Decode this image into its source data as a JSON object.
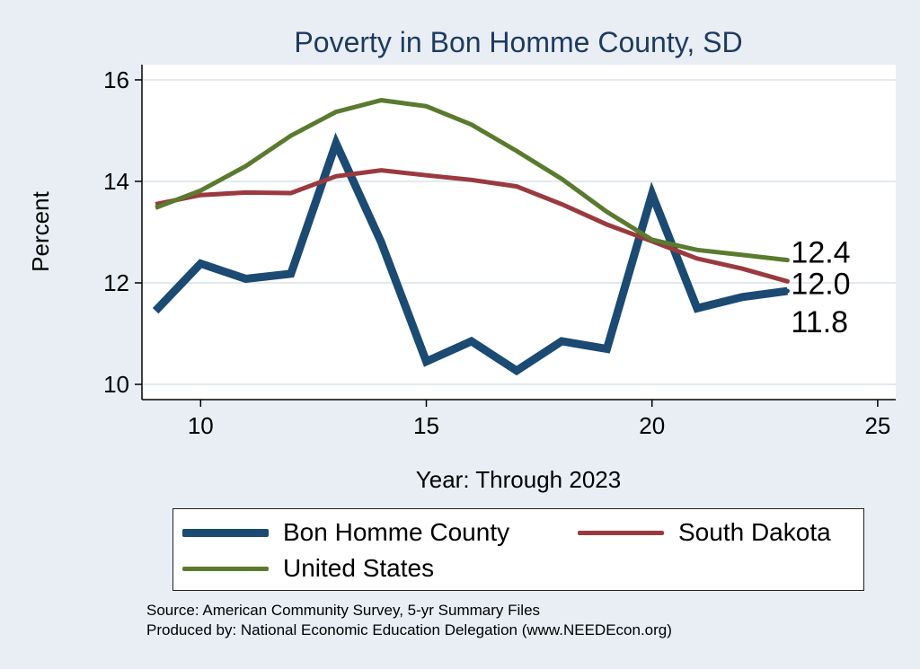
{
  "chart_data": {
    "type": "line",
    "title": "Poverty in Bon Homme County, SD",
    "xlabel": "Year: Through 2023",
    "ylabel": "Percent",
    "xlim": [
      8.7,
      25.4
    ],
    "ylim": [
      9.7,
      16.3
    ],
    "xticks": [
      10,
      15,
      20,
      25
    ],
    "yticks": [
      10,
      12,
      14,
      16
    ],
    "grid": true,
    "legend_position": "bottom",
    "series": [
      {
        "name": "Bon Homme County",
        "color": "#1b4a73",
        "width": 9,
        "x": [
          9,
          10,
          11,
          12,
          13,
          14,
          15,
          16,
          17,
          18,
          19,
          20,
          21,
          22,
          23
        ],
        "y": [
          11.45,
          12.38,
          12.08,
          12.18,
          14.75,
          12.8,
          10.45,
          10.85,
          10.27,
          10.85,
          10.7,
          13.75,
          11.5,
          11.72,
          11.84
        ],
        "end_label": "11.8"
      },
      {
        "name": "South Dakota",
        "color": "#9a3a3f",
        "width": 5,
        "x": [
          9,
          10,
          11,
          12,
          13,
          14,
          15,
          16,
          17,
          18,
          19,
          20,
          21,
          22,
          23
        ],
        "y": [
          13.55,
          13.73,
          13.78,
          13.77,
          14.1,
          14.22,
          14.12,
          14.03,
          13.9,
          13.55,
          13.15,
          12.82,
          12.48,
          12.28,
          12.03
        ],
        "end_label": "12.0"
      },
      {
        "name": "United States",
        "color": "#5a7a2e",
        "width": 5,
        "x": [
          9,
          10,
          11,
          12,
          13,
          14,
          15,
          16,
          17,
          18,
          19,
          20,
          21,
          22,
          23
        ],
        "y": [
          13.48,
          13.82,
          14.3,
          14.9,
          15.37,
          15.6,
          15.48,
          15.12,
          14.6,
          14.05,
          13.4,
          12.85,
          12.65,
          12.55,
          12.45
        ],
        "end_label": "12.4"
      }
    ]
  },
  "source": {
    "line1": "Source: American Community Survey, 5-yr Summary Files",
    "line2": "Produced by: National Economic Education Delegation (www.NEEDEcon.org)"
  }
}
